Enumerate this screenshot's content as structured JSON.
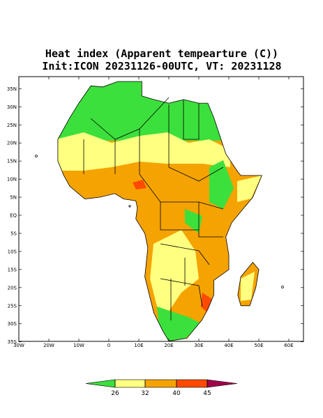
{
  "title": [
    "Heat index (Apparent tempearture (C))",
    "Init:ICON 20231126-00UTC, VT: 20231128"
  ],
  "map": {
    "lat_ticks": [
      {
        "value": 35,
        "label": "35N"
      },
      {
        "value": 30,
        "label": "30N"
      },
      {
        "value": 25,
        "label": "25N"
      },
      {
        "value": 20,
        "label": "20N"
      },
      {
        "value": 15,
        "label": "15N"
      },
      {
        "value": 10,
        "label": "10N"
      },
      {
        "value": 5,
        "label": "5N"
      },
      {
        "value": 0,
        "label": "EQ"
      },
      {
        "value": -5,
        "label": "5S"
      },
      {
        "value": -10,
        "label": "10S"
      },
      {
        "value": -15,
        "label": "15S"
      },
      {
        "value": -20,
        "label": "20S"
      },
      {
        "value": -25,
        "label": "25S"
      },
      {
        "value": -30,
        "label": "30S"
      },
      {
        "value": -35,
        "label": "35S"
      }
    ],
    "lon_ticks": [
      {
        "value": -30,
        "label": "30W"
      },
      {
        "value": -20,
        "label": "20W"
      },
      {
        "value": -10,
        "label": "10W"
      },
      0,
      {
        "value": 10,
        "label": "10E"
      },
      {
        "value": 20,
        "label": "20E"
      },
      {
        "value": 30,
        "label": "30E"
      },
      {
        "value": 40,
        "label": "40E"
      },
      {
        "value": 50,
        "label": "50E"
      },
      {
        "value": 60,
        "label": "60E"
      }
    ]
  },
  "colorbar": {
    "ticks": [
      26,
      32,
      40,
      45
    ],
    "colors": [
      "#3ce03c",
      "#ffff80",
      "#f5a300",
      "#ff4a00",
      "#a0004a"
    ]
  }
}
